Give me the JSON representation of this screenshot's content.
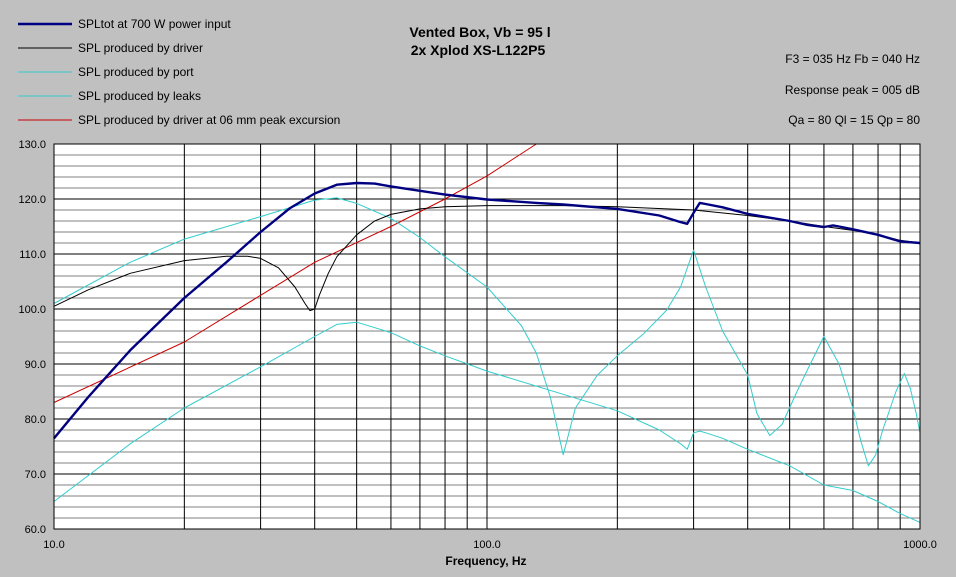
{
  "chart_data": {
    "type": "line",
    "title": "Vented Box, Vb = 95 l",
    "subtitle": "2x Xplod XS-L122P5",
    "xlabel": "Frequency, Hz",
    "ylabel": "",
    "xscale": "log",
    "xlim": [
      10,
      1000
    ],
    "ylim": [
      60,
      130
    ],
    "grid": true,
    "legend_placement": "top-left",
    "x_tick_labels": [
      "10.0",
      "100.0",
      "1000.0"
    ],
    "y_tick_labels": [
      "60.0",
      "70.0",
      "80.0",
      "90.0",
      "100.0",
      "110.0",
      "120.0",
      "130.0"
    ],
    "info": [
      "F3 = 035 Hz  Fb = 040 Hz",
      "Response peak = 005 dB",
      "Qa = 80  Ql = 15  Qp = 80"
    ],
    "series": [
      {
        "name": "SPLtot at 700 W power input",
        "color": "#000080",
        "points": [
          [
            10,
            76.5
          ],
          [
            12,
            84
          ],
          [
            15,
            92.5
          ],
          [
            20,
            102
          ],
          [
            25,
            108.5
          ],
          [
            30,
            114
          ],
          [
            35,
            118.3
          ],
          [
            40,
            121
          ],
          [
            45,
            122.6
          ],
          [
            50,
            122.9
          ],
          [
            55,
            122.8
          ],
          [
            60,
            122.3
          ],
          [
            70,
            121.5
          ],
          [
            80,
            120.8
          ],
          [
            100,
            119.9
          ],
          [
            130,
            119.3
          ],
          [
            150,
            119
          ],
          [
            200,
            118.2
          ],
          [
            250,
            117
          ],
          [
            280,
            115.8
          ],
          [
            290,
            115.5
          ],
          [
            300,
            117.5
          ],
          [
            310,
            119.3
          ],
          [
            320,
            119.1
          ],
          [
            350,
            118.5
          ],
          [
            400,
            117.3
          ],
          [
            500,
            116
          ],
          [
            550,
            115.3
          ],
          [
            600,
            114.9
          ],
          [
            630,
            115.2
          ],
          [
            650,
            115
          ],
          [
            700,
            114.5
          ],
          [
            800,
            113.5
          ],
          [
            900,
            112.3
          ],
          [
            1000,
            112
          ]
        ]
      },
      {
        "name": "SPL produced by driver",
        "color": "#000000",
        "points": [
          [
            10,
            100.5
          ],
          [
            12,
            103.5
          ],
          [
            15,
            106.5
          ],
          [
            20,
            108.8
          ],
          [
            25,
            109.6
          ],
          [
            28,
            109.6
          ],
          [
            30,
            109.2
          ],
          [
            33,
            107.5
          ],
          [
            36,
            104
          ],
          [
            38,
            101
          ],
          [
            39,
            99.7
          ],
          [
            40,
            100
          ],
          [
            41,
            102.5
          ],
          [
            43,
            106.5
          ],
          [
            45,
            109.5
          ],
          [
            50,
            113.5
          ],
          [
            55,
            116
          ],
          [
            60,
            117.2
          ],
          [
            70,
            118.2
          ],
          [
            80,
            118.6
          ],
          [
            100,
            118.8
          ],
          [
            150,
            118.8
          ],
          [
            200,
            118.6
          ],
          [
            300,
            118
          ],
          [
            400,
            117
          ],
          [
            500,
            116
          ],
          [
            600,
            115
          ],
          [
            700,
            114.3
          ],
          [
            800,
            113.5
          ],
          [
            900,
            112.5
          ],
          [
            1000,
            112
          ]
        ]
      },
      {
        "name": "SPL produced by port",
        "color": "#33cccc",
        "points": [
          [
            10,
            101
          ],
          [
            15,
            108.5
          ],
          [
            20,
            112.7
          ],
          [
            30,
            116.8
          ],
          [
            40,
            119.8
          ],
          [
            45,
            120.2
          ],
          [
            50,
            119.2
          ],
          [
            60,
            116.5
          ],
          [
            70,
            113
          ],
          [
            80,
            109.5
          ],
          [
            100,
            104
          ],
          [
            120,
            97
          ],
          [
            130,
            92
          ],
          [
            140,
            84
          ],
          [
            150,
            73.5
          ],
          [
            160,
            82
          ],
          [
            180,
            88
          ],
          [
            200,
            91.5
          ],
          [
            230,
            95.5
          ],
          [
            260,
            99.8
          ],
          [
            280,
            104
          ],
          [
            300,
            110.7
          ],
          [
            320,
            104
          ],
          [
            350,
            96
          ],
          [
            400,
            88
          ],
          [
            420,
            81
          ],
          [
            450,
            77
          ],
          [
            480,
            79
          ],
          [
            520,
            85
          ],
          [
            550,
            89
          ],
          [
            600,
            95
          ],
          [
            650,
            90
          ],
          [
            700,
            82
          ],
          [
            730,
            76
          ],
          [
            760,
            71.5
          ],
          [
            790,
            73.5
          ],
          [
            820,
            78
          ],
          [
            880,
            85
          ],
          [
            920,
            88.3
          ],
          [
            950,
            85.5
          ],
          [
            980,
            81
          ],
          [
            1000,
            77.5
          ]
        ]
      },
      {
        "name": "SPL produced by leaks",
        "color": "#33cccc",
        "points": [
          [
            10,
            65
          ],
          [
            15,
            75.5
          ],
          [
            20,
            82
          ],
          [
            30,
            89.5
          ],
          [
            40,
            95
          ],
          [
            45,
            97.2
          ],
          [
            50,
            97.6
          ],
          [
            60,
            95.7
          ],
          [
            70,
            93.3
          ],
          [
            80,
            91.5
          ],
          [
            100,
            88.7
          ],
          [
            150,
            84.5
          ],
          [
            200,
            81.5
          ],
          [
            250,
            78
          ],
          [
            280,
            75.5
          ],
          [
            290,
            74.5
          ],
          [
            300,
            77.5
          ],
          [
            310,
            77.8
          ],
          [
            320,
            77.5
          ],
          [
            350,
            76.5
          ],
          [
            400,
            74.5
          ],
          [
            500,
            71.5
          ],
          [
            600,
            68
          ],
          [
            700,
            67
          ],
          [
            800,
            65
          ],
          [
            900,
            62.8
          ],
          [
            1000,
            61.2
          ]
        ]
      },
      {
        "name": "SPL produced by driver at 06 mm peak excursion",
        "color": "#cc0000",
        "points": [
          [
            10,
            83
          ],
          [
            20,
            94
          ],
          [
            30,
            102.5
          ],
          [
            40,
            108.5
          ],
          [
            60,
            115
          ],
          [
            80,
            120
          ],
          [
            100,
            124.2
          ],
          [
            130,
            130
          ]
        ]
      }
    ]
  }
}
